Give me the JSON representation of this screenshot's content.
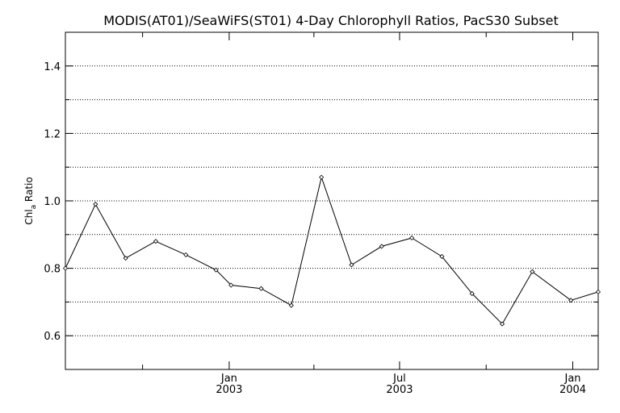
{
  "chart_data": {
    "type": "line",
    "title": "MODIS(AT01)/SeaWiFS(ST01) 4-Day Chlorophyll Ratios, PacS30 Subset",
    "ylabel": "Chl",
    "ylabel_sub": "a",
    "ylabel_suffix": " Ratio",
    "ylim": [
      0.5,
      1.5
    ],
    "yticks": [
      "0.6",
      "0.8",
      "1.0",
      "1.2",
      "1.4"
    ],
    "xlim": [
      "2002-07-11",
      "2004-01-28"
    ],
    "xticks": [
      {
        "date": "2003-01-01",
        "label1": "Jan",
        "label2": "2003"
      },
      {
        "date": "2003-07-01",
        "label1": "Jul",
        "label2": "2003"
      },
      {
        "date": "2004-01-01",
        "label1": "Jan",
        "label2": "2004"
      }
    ],
    "series": [
      {
        "points": [
          {
            "x": "2002-07-11",
            "y": 0.8
          },
          {
            "x": "2002-08-12",
            "y": 0.99
          },
          {
            "x": "2002-09-13",
            "y": 0.83
          },
          {
            "x": "2002-10-15",
            "y": 0.88
          },
          {
            "x": "2002-11-16",
            "y": 0.84
          },
          {
            "x": "2002-12-18",
            "y": 0.795
          },
          {
            "x": "2003-01-03",
            "y": 0.75
          },
          {
            "x": "2003-02-04",
            "y": 0.74
          },
          {
            "x": "2003-03-08",
            "y": 0.69
          },
          {
            "x": "2003-04-09",
            "y": 1.07
          },
          {
            "x": "2003-05-11",
            "y": 0.81
          },
          {
            "x": "2003-06-12",
            "y": 0.865
          },
          {
            "x": "2003-07-14",
            "y": 0.89
          },
          {
            "x": "2003-08-15",
            "y": 0.835
          },
          {
            "x": "2003-09-16",
            "y": 0.725
          },
          {
            "x": "2003-10-18",
            "y": 0.635
          },
          {
            "x": "2003-11-19",
            "y": 0.79
          },
          {
            "x": "2003-12-30",
            "y": 0.705
          },
          {
            "x": "2004-01-28",
            "y": 0.73
          }
        ]
      }
    ],
    "grid": "horizontal-dotted"
  }
}
